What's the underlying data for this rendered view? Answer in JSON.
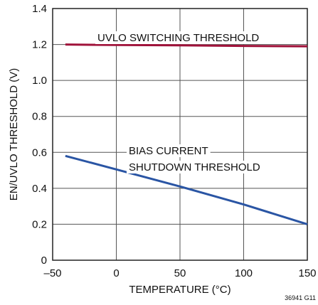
{
  "chart_data": {
    "type": "line",
    "xlabel": "TEMPERATURE (°C)",
    "ylabel": "EN/UVLO THRESHOLD (V)",
    "xlim": [
      -50,
      150
    ],
    "ylim": [
      0,
      1.4
    ],
    "x_ticks": [
      -50,
      0,
      50,
      100,
      150
    ],
    "x_tick_labels": [
      "–50",
      "0",
      "50",
      "100",
      "150"
    ],
    "y_ticks": [
      0,
      0.2,
      0.4,
      0.6,
      0.8,
      1.0,
      1.2,
      1.4
    ],
    "y_tick_labels": [
      "0",
      "0.2",
      "0.4",
      "0.6",
      "0.8",
      "1.0",
      "1.2",
      "1.4"
    ],
    "grid": true,
    "series": [
      {
        "color": "#a0123a",
        "x": [
          -40,
          0,
          50,
          100,
          150
        ],
        "y": [
          1.2,
          1.197,
          1.195,
          1.192,
          1.19
        ]
      },
      {
        "color": "#2a55a4",
        "x": [
          -40,
          0,
          50,
          100,
          150
        ],
        "y": [
          0.58,
          0.505,
          0.41,
          0.31,
          0.2
        ]
      }
    ],
    "annotations": [
      {
        "id": "uvlo",
        "lines": [
          "UVLO SWITCHING THRESHOLD"
        ]
      },
      {
        "id": "bias",
        "lines": [
          "BIAS CURRENT",
          "SHUTDOWN THRESHOLD"
        ]
      }
    ],
    "figure_id": "36941 G11"
  }
}
